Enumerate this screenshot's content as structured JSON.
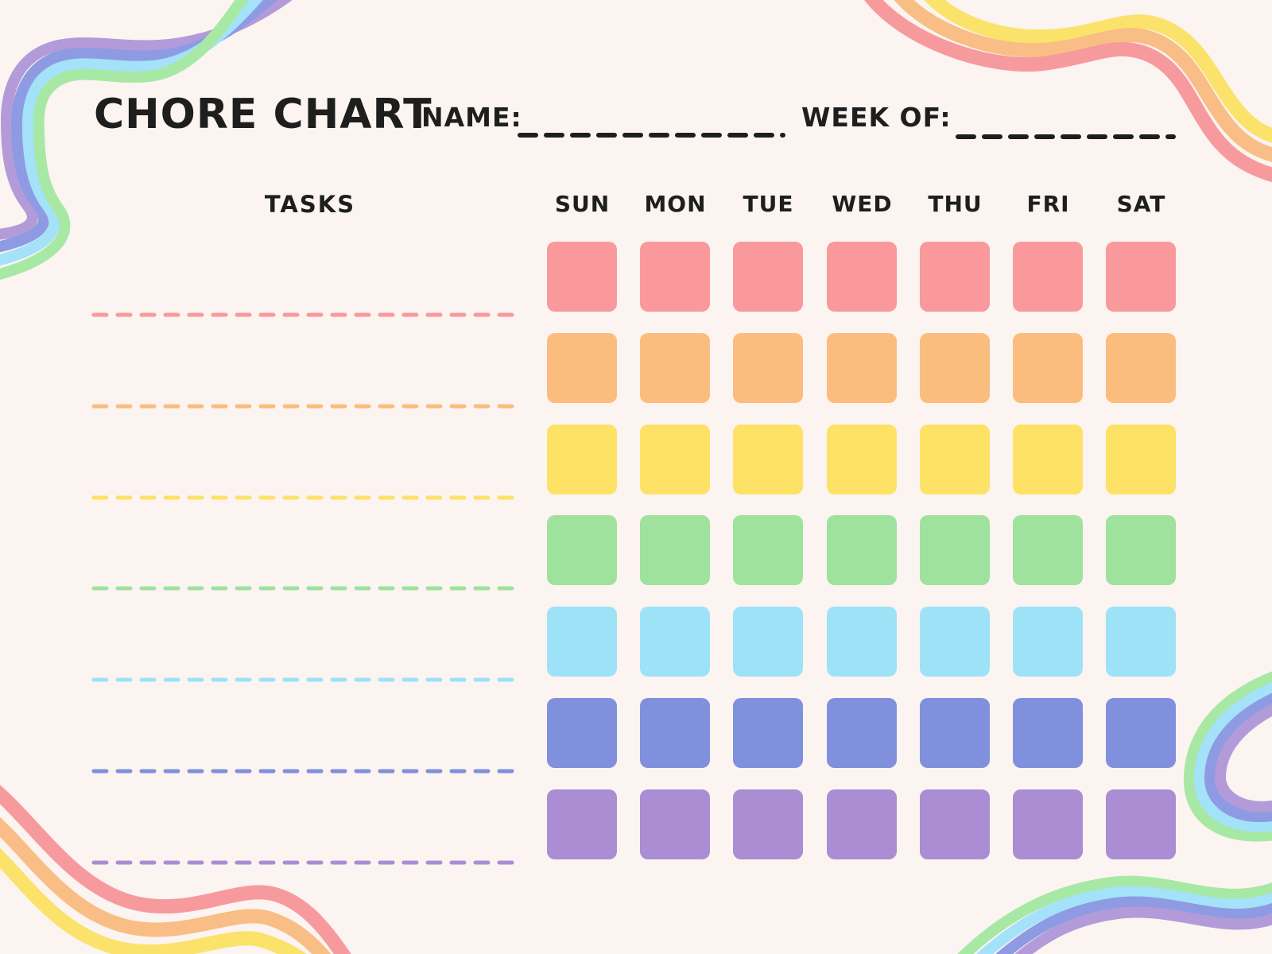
{
  "title": "CHORE CHART",
  "header": {
    "name_label": "NAME:",
    "week_label": "WEEK OF:"
  },
  "table": {
    "tasks_label": "TASKS",
    "days": [
      "SUN",
      "MON",
      "TUE",
      "WED",
      "THU",
      "FRI",
      "SAT"
    ],
    "row_colors": [
      "#F9999C",
      "#FBBD7E",
      "#FDE266",
      "#9FE29D",
      "#9EE2F8",
      "#8090DC",
      "#AA8DD2"
    ]
  },
  "palette": {
    "background": "#FBF4F1",
    "ink": "#1E1E1E",
    "cool_ribbon": [
      "#B39BD9",
      "#8E9BE3",
      "#A3E2F9",
      "#A8E8A5"
    ],
    "warm_ribbon": [
      "#FBE26B",
      "#F9BE85",
      "#F79A9E"
    ]
  }
}
